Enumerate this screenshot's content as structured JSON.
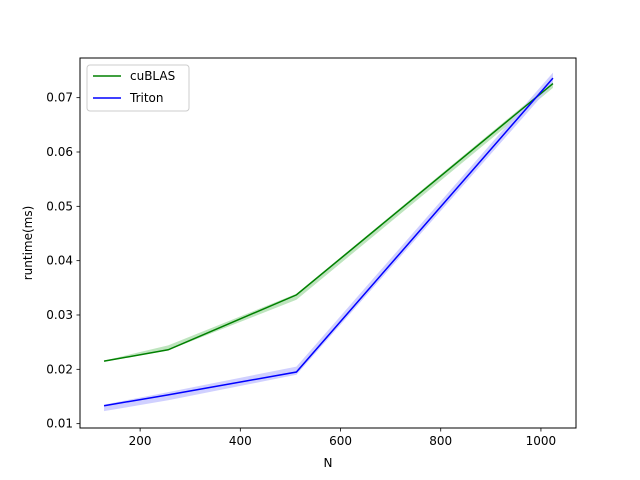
{
  "chart_data": {
    "type": "line",
    "title": "",
    "xlabel": "N",
    "ylabel": "runtime(ms)",
    "xlim": [
      80,
      1070
    ],
    "ylim": [
      0.0092,
      0.0773
    ],
    "x_ticks": [
      200,
      400,
      600,
      800,
      1000
    ],
    "y_ticks": [
      0.01,
      0.02,
      0.03,
      0.04,
      0.05,
      0.06,
      0.07
    ],
    "grid": false,
    "legend_position": "top-left",
    "x": [
      128,
      256,
      512,
      1024
    ],
    "series": [
      {
        "name": "cuBLAS",
        "color": "#008000",
        "band_color": "#b3e0b3",
        "values": [
          0.0215,
          0.0236,
          0.0337,
          0.0726
        ],
        "lower": [
          0.0214,
          0.0235,
          0.0328,
          0.0718
        ],
        "upper": [
          0.0216,
          0.0244,
          0.0339,
          0.073
        ]
      },
      {
        "name": "Triton",
        "color": "#0000ff",
        "band_color": "#c8c8ff",
        "values": [
          0.0133,
          0.0153,
          0.0195,
          0.0736
        ],
        "lower": [
          0.0123,
          0.0143,
          0.019,
          0.0726
        ],
        "upper": [
          0.0135,
          0.0158,
          0.0205,
          0.0746
        ]
      }
    ]
  }
}
